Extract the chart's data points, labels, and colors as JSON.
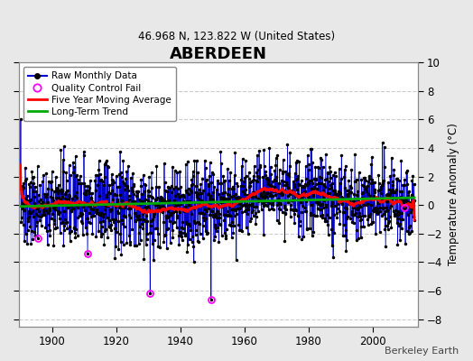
{
  "title": "ABERDEEN",
  "subtitle": "46.968 N, 123.822 W (United States)",
  "ylabel": "Temperature Anomaly (°C)",
  "xlabel_bottom": "Berkeley Earth",
  "year_start": 1890,
  "year_end": 2013,
  "ylim": [
    -8.5,
    10
  ],
  "yticks": [
    -8,
    -6,
    -4,
    -2,
    0,
    2,
    4,
    6,
    8,
    10
  ],
  "xticks": [
    1900,
    1920,
    1940,
    1960,
    1980,
    2000
  ],
  "raw_color": "#0000CC",
  "raw_color_light": "#8888FF",
  "marker_color": "#000000",
  "qc_color": "#FF00FF",
  "ma_color": "#FF0000",
  "trend_color": "#00AA00",
  "bg_color": "#E8E8E8",
  "plot_bg": "#FFFFFF",
  "grid_color": "#CCCCCC",
  "seed": 137
}
